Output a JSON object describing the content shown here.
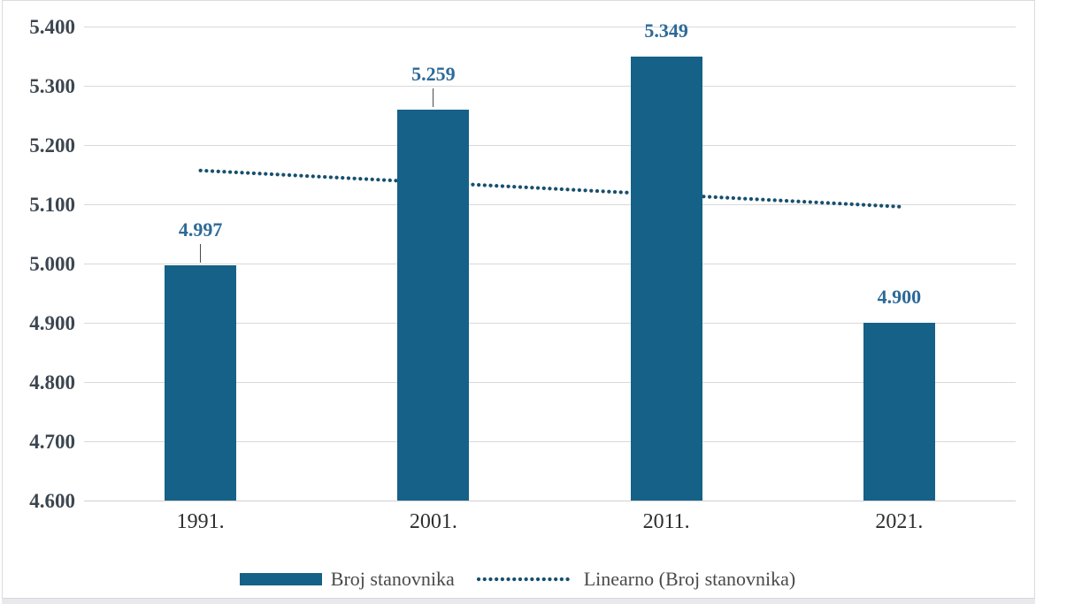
{
  "chart_data": {
    "type": "bar",
    "title": "",
    "categories": [
      "1991.",
      "2001.",
      "2011.",
      "2021."
    ],
    "series": [
      {
        "name": "Broj stanovnika",
        "values": [
          4997,
          5259,
          5349,
          4900
        ],
        "value_labels": [
          "4.997",
          "5.259",
          "5.349",
          "4.900"
        ],
        "color": "#156187"
      }
    ],
    "data_label_leader_lines": [
      true,
      true,
      false,
      false
    ],
    "trendline": {
      "name": "Linearno (Broj stanovnika)",
      "style": "dotted",
      "color": "#17506f",
      "start_value": 5157,
      "end_value": 5096
    },
    "y_axis": {
      "min": 4600,
      "max": 5400,
      "step": 100,
      "tick_labels": [
        "4.600",
        "4.700",
        "4.800",
        "4.900",
        "5.000",
        "5.100",
        "5.200",
        "5.300",
        "5.400"
      ]
    },
    "x_axis": {
      "tick_labels": [
        "1991.",
        "2001.",
        "2011.",
        "2021."
      ]
    },
    "grid": true,
    "legend": {
      "position": "bottom",
      "entries": [
        "Broj stanovnika",
        "Linearno (Broj stanovnika)"
      ]
    },
    "colors": {
      "bar": "#156187",
      "data_label": "#2d6a99",
      "trend_dot": "#17506f",
      "gridline": "#d9d9d9",
      "axis_text": "#3c4650",
      "legend_text": "#4a4a4a"
    }
  }
}
